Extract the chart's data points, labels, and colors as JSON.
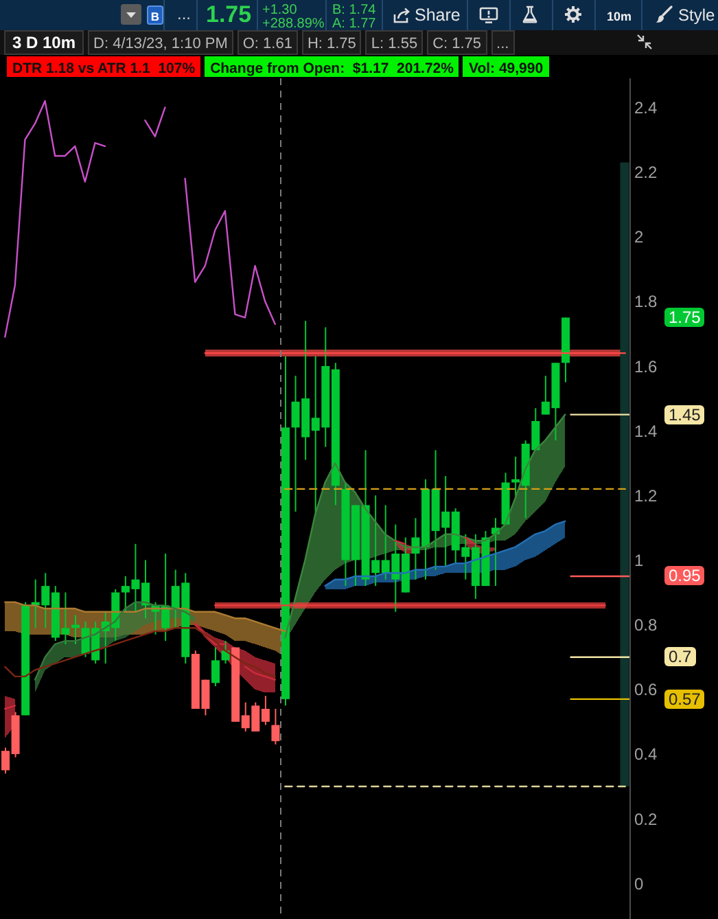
{
  "chart_data": {
    "type": "candlestick",
    "title": "3 D 10m",
    "annotations": [
      "B",
      "...",
      "1.75",
      "+1.30",
      "+288.89%",
      "B: 1.74",
      "A: 1.77",
      "Share",
      "10m",
      "Style",
      "D: 4/13/23, 1:10 PM",
      "O: 1.61",
      "H: 1.75",
      "L: 1.55",
      "C: 1.75",
      "...",
      "DTR 1.18 vs ATR 1.1  107%",
      "Change from Open:  $1.17  201.72%",
      "Vol: 49,990"
    ],
    "categories": [
      null,
      null,
      null,
      null,
      null,
      null,
      null,
      null,
      null,
      null,
      null,
      null,
      null,
      null,
      null,
      null,
      null,
      null,
      null,
      null,
      null,
      null,
      null,
      null,
      null,
      null,
      null,
      null,
      null,
      null,
      null,
      null,
      null,
      null,
      null,
      null,
      null,
      null,
      null,
      null,
      null,
      null,
      null,
      null,
      null,
      null,
      null,
      null,
      null,
      null,
      null,
      null,
      null,
      null,
      null,
      null,
      null,
      null,
      null,
      null,
      null,
      null,
      null
    ],
    "ohlc": [
      [
        0.41,
        0.42,
        0.34,
        0.35
      ],
      [
        0.52,
        0.53,
        0.39,
        0.4
      ],
      [
        0.52,
        0.87,
        0.52,
        0.86
      ],
      [
        0.86,
        0.94,
        0.79,
        0.87
      ],
      [
        0.86,
        0.96,
        0.79,
        0.92
      ],
      [
        0.76,
        0.92,
        0.75,
        0.9
      ],
      [
        0.77,
        0.9,
        0.74,
        0.79
      ],
      [
        0.79,
        0.83,
        0.74,
        0.8
      ],
      [
        0.71,
        0.81,
        0.7,
        0.79
      ],
      [
        0.69,
        0.81,
        0.68,
        0.79
      ],
      [
        0.78,
        0.84,
        0.68,
        0.81
      ],
      [
        0.79,
        0.91,
        0.75,
        0.9
      ],
      [
        0.9,
        0.95,
        0.84,
        0.92
      ],
      [
        0.91,
        1.05,
        0.84,
        0.94
      ],
      [
        0.86,
        1,
        0.82,
        0.93
      ],
      [
        0.84,
        0.87,
        0.77,
        0.86
      ],
      [
        0.79,
        1.02,
        0.75,
        0.86
      ],
      [
        0.85,
        0.97,
        0.79,
        0.92
      ],
      [
        0.7,
        0.96,
        0.68,
        0.93
      ],
      [
        0.71,
        0.72,
        0.54,
        0.54
      ],
      [
        0.63,
        0.63,
        0.52,
        0.54
      ],
      [
        0.62,
        0.73,
        0.61,
        0.69
      ],
      [
        0.69,
        0.75,
        0.68,
        0.72
      ],
      [
        0.73,
        0.73,
        0.5,
        0.5
      ],
      [
        0.52,
        0.56,
        0.47,
        0.48
      ],
      [
        0.55,
        0.56,
        0.47,
        0.47
      ],
      [
        0.54,
        0.58,
        0.49,
        0.5
      ],
      [
        0.49,
        0.54,
        0.43,
        0.44
      ],
      [
        0.57,
        1.63,
        0.55,
        1.41
      ],
      [
        1.41,
        1.57,
        1.15,
        1.49
      ],
      [
        1.38,
        1.74,
        1.31,
        1.5
      ],
      [
        1.4,
        1.63,
        1.14,
        1.44
      ],
      [
        1.41,
        1.72,
        1.35,
        1.6
      ],
      [
        1.23,
        1.61,
        1.17,
        1.59
      ],
      [
        1,
        1.24,
        0.92,
        1.22
      ],
      [
        1,
        1.17,
        0.92,
        1.17
      ],
      [
        0.94,
        1.34,
        0.92,
        1.17
      ],
      [
        0.96,
        1.2,
        0.92,
        1
      ],
      [
        0.96,
        1.17,
        0.94,
        1
      ],
      [
        0.94,
        1.11,
        0.84,
        1.02
      ],
      [
        0.9,
        1.07,
        0.9,
        1.02
      ],
      [
        1.02,
        1.13,
        0.94,
        1.07
      ],
      [
        1.04,
        1.25,
        0.94,
        1.22
      ],
      [
        1.09,
        1.34,
        0.97,
        1.22
      ],
      [
        1.1,
        1.26,
        0.98,
        1.15
      ],
      [
        1.03,
        1.16,
        0.99,
        1.15
      ],
      [
        1.01,
        1.08,
        0.94,
        1.04
      ],
      [
        0.92,
        1.08,
        0.88,
        1.04
      ],
      [
        0.92,
        1.09,
        0.92,
        1.07
      ],
      [
        1.08,
        1.13,
        0.92,
        1.1
      ],
      [
        1.11,
        1.27,
        1.11,
        1.24
      ],
      [
        1.24,
        1.32,
        1.19,
        1.25
      ],
      [
        1.23,
        1.37,
        1.13,
        1.36
      ],
      [
        1.34,
        1.47,
        1.34,
        1.43
      ],
      [
        1.45,
        1.57,
        1.45,
        1.49
      ],
      [
        1.47,
        1.61,
        1.37,
        1.61
      ],
      [
        1.61,
        1.75,
        1.55,
        1.75
      ],
      null,
      null,
      null,
      null,
      null,
      null
    ],
    "colors": [
      "#ff5f5f",
      "#ff5f5f",
      "#00c832",
      "#00c832",
      "#00c832",
      "#00c832",
      "#00c832",
      "#00c832",
      "#00c832",
      "#00c832",
      "#00c832",
      "#00c832",
      "#00c832",
      "#00c832",
      "#00c832",
      "#00c832",
      "#00c832",
      "#00c832",
      "#00c832",
      "#ff5f5f",
      "#ff5f5f",
      "#00c832",
      "#00c832",
      "#ff5f5f",
      "#ff5f5f",
      "#ff5f5f",
      "#ff5f5f",
      "#ff5f5f",
      "#00c832",
      "#00c832",
      "#00c832",
      "#00c832",
      "#00c832",
      "#00c832",
      "#00c832",
      "#00c832",
      "#00c832",
      "#00c832",
      "#00c832",
      "#00c832",
      "#00c832",
      "#00c832",
      "#00c832",
      "#00c832",
      "#00c832",
      "#00c832",
      "#00c832",
      "#00c832",
      "#00c832",
      "#00c832",
      "#00c832",
      "#00c832",
      "#00c832",
      "#00c832",
      "#00c832",
      "#00c832",
      "#00c832",
      null,
      null,
      null,
      null,
      null,
      null
    ],
    "value_labels": [
      null,
      null,
      null,
      null,
      null,
      null,
      null,
      null,
      null,
      null,
      null,
      null,
      null,
      null,
      null,
      null,
      null,
      null,
      null,
      null,
      null,
      null,
      null,
      null,
      null,
      null,
      null,
      null,
      null,
      null,
      null,
      null,
      null,
      null,
      null,
      null,
      null,
      null,
      null,
      null,
      null,
      null,
      null,
      null,
      null,
      null,
      null,
      null,
      null,
      null,
      null,
      null,
      null,
      null,
      null,
      null,
      "1.75",
      null,
      null,
      null,
      null,
      null,
      null
    ],
    "series": [
      {
        "type": "line",
        "color": "#c850c8",
        "values": [
          1.69,
          1.85,
          2.3,
          2.35,
          2.42,
          2.25,
          2.25,
          2.28,
          2.17,
          2.29,
          2.28,
          null,
          null,
          null,
          2.36,
          2.31,
          2.4,
          null,
          2.18,
          1.86,
          1.91,
          2.02,
          2.08,
          1.76,
          1.75,
          1.91,
          1.8,
          1.73,
          null,
          null,
          null,
          null,
          null,
          null,
          null,
          null,
          null,
          null,
          null,
          null,
          null,
          null,
          null,
          null,
          null,
          null,
          null,
          null,
          null,
          null,
          null,
          null,
          null,
          null,
          null,
          null,
          null,
          null,
          null,
          null,
          null,
          null,
          null
        ]
      },
      {
        "type": "line",
        "color": "#ad7c30",
        "values": [
          0.87,
          0.87,
          0.86,
          0.86,
          0.85,
          0.85,
          0.85,
          0.85,
          0.84,
          0.84,
          0.84,
          0.84,
          0.84,
          0.84,
          0.85,
          0.85,
          0.85,
          0.85,
          0.85,
          0.84,
          0.84,
          0.84,
          0.83,
          0.82,
          0.82,
          0.81,
          0.8,
          0.79,
          0.78,
          null,
          null,
          null,
          null,
          null,
          null,
          null,
          null,
          null,
          null,
          null,
          null,
          null,
          null,
          null,
          null,
          null,
          null,
          null,
          null,
          null,
          null,
          null,
          null,
          null,
          null,
          null,
          null,
          null,
          null,
          null,
          null,
          null,
          null
        ],
        "lower": [
          0.78,
          0.78,
          0.77,
          0.77,
          0.77,
          0.77,
          0.77,
          0.76,
          0.76,
          0.76,
          0.76,
          0.76,
          0.77,
          0.77,
          0.77,
          0.78,
          0.78,
          0.79,
          0.8,
          0.8,
          0.79,
          0.78,
          0.77,
          0.75,
          0.75,
          0.74,
          0.73,
          0.72,
          0.7,
          null,
          null,
          null,
          null,
          null,
          null,
          null,
          null,
          null,
          null,
          null,
          null,
          null,
          null,
          null,
          null,
          null,
          null,
          null,
          null,
          null,
          null,
          null,
          null,
          null,
          null,
          null,
          null,
          null,
          null,
          null,
          null,
          null,
          null
        ],
        "upper": [
          0.87,
          0.87,
          0.86,
          0.86,
          0.85,
          0.85,
          0.85,
          0.85,
          0.84,
          0.84,
          0.84,
          0.84,
          0.84,
          0.84,
          0.85,
          0.85,
          0.85,
          0.85,
          0.85,
          0.84,
          0.84,
          0.84,
          0.83,
          0.82,
          0.82,
          0.81,
          0.8,
          0.79,
          0.78,
          null,
          null,
          null,
          null,
          null,
          null,
          null,
          null,
          null,
          null,
          null,
          null,
          null,
          null,
          null,
          null,
          null,
          null,
          null,
          null,
          null,
          null,
          null,
          null,
          null,
          null,
          null,
          null,
          null,
          null,
          null,
          null,
          null,
          null
        ]
      },
      {
        "type": "line",
        "color": "#36773b",
        "values": [
          null,
          null,
          null,
          0.63,
          0.7,
          0.74,
          0.75,
          0.75,
          0.76,
          0.77,
          0.79,
          0.81,
          0.85,
          0.87,
          0.87,
          0.86,
          0.86,
          0.85,
          0.84,
          0.82,
          null,
          null,
          null,
          null,
          null,
          null,
          null,
          null,
          null,
          null,
          null,
          null,
          null,
          null,
          null,
          null,
          null,
          null,
          null,
          null,
          null,
          null,
          null,
          null,
          null,
          null,
          null,
          null,
          null,
          null,
          null,
          null,
          null,
          null,
          null,
          null,
          null,
          null,
          null,
          null,
          null,
          null,
          null
        ],
        "lower": [
          null,
          null,
          null,
          0.59,
          0.66,
          0.68,
          0.7,
          0.7,
          0.71,
          0.72,
          0.73,
          0.75,
          0.76,
          0.78,
          0.8,
          0.81,
          0.82,
          0.82,
          0.82,
          0.81,
          null,
          null,
          null,
          null,
          null,
          null,
          null,
          null,
          null,
          null,
          null,
          null,
          null,
          null,
          null,
          null,
          null,
          null,
          null,
          null,
          null,
          null,
          null,
          null,
          null,
          null,
          null,
          null,
          null,
          null,
          null,
          null,
          null,
          null,
          null,
          null,
          null,
          null,
          null,
          null,
          null,
          null,
          null
        ],
        "upper": [
          null,
          null,
          null,
          0.63,
          0.7,
          0.74,
          0.75,
          0.75,
          0.76,
          0.77,
          0.79,
          0.81,
          0.85,
          0.87,
          0.87,
          0.86,
          0.86,
          0.85,
          0.84,
          0.82,
          null,
          null,
          null,
          null,
          null,
          null,
          null,
          null,
          null,
          null,
          null,
          null,
          null,
          null,
          null,
          null,
          null,
          null,
          null,
          null,
          null,
          null,
          null,
          null,
          null,
          null,
          null,
          null,
          null,
          null,
          null,
          null,
          null,
          null,
          null,
          null,
          null,
          null,
          null,
          null,
          null,
          null,
          null
        ]
      },
      {
        "type": "line",
        "color": "#cc2c3c",
        "values": [
          0.54,
          0.55,
          null,
          null,
          null,
          null,
          null,
          null,
          null,
          null,
          null,
          null,
          null,
          null,
          null,
          null,
          null,
          null,
          null,
          0.8,
          0.77,
          0.74,
          0.74,
          null,
          0.67,
          0.65,
          0.64,
          0.63,
          null,
          null,
          null,
          null,
          null,
          null,
          null,
          null,
          null,
          null,
          null,
          null,
          null,
          null,
          null,
          null,
          null,
          null,
          null,
          null,
          null,
          null,
          null,
          null,
          null,
          null,
          null,
          null,
          null,
          null,
          null,
          null,
          null,
          null,
          null
        ],
        "lower": [
          0.45,
          0.49,
          null,
          null,
          null,
          null,
          null,
          null,
          null,
          null,
          null,
          null,
          null,
          null,
          null,
          null,
          null,
          null,
          null,
          0.8,
          0.76,
          0.73,
          0.7,
          0.66,
          0.63,
          0.6,
          0.59,
          0.59,
          null,
          null,
          null,
          null,
          null,
          null,
          null,
          null,
          null,
          null,
          null,
          null,
          null,
          null,
          null,
          null,
          null,
          null,
          null,
          null,
          null,
          null,
          null,
          null,
          null,
          null,
          null,
          null,
          null,
          null,
          null,
          null,
          null,
          null,
          null
        ],
        "upper": [
          0.58,
          0.57,
          null,
          null,
          null,
          null,
          null,
          null,
          null,
          null,
          null,
          null,
          null,
          null,
          null,
          null,
          null,
          null,
          null,
          0.81,
          0.78,
          0.76,
          0.75,
          0.73,
          0.72,
          0.7,
          0.69,
          0.68,
          null,
          null,
          null,
          null,
          null,
          null,
          null,
          null,
          null,
          null,
          null,
          null,
          null,
          null,
          null,
          null,
          null,
          null,
          null,
          null,
          null,
          null,
          null,
          null,
          null,
          null,
          null,
          null,
          null,
          null,
          null,
          null,
          null,
          null,
          null
        ]
      },
      {
        "type": "line",
        "color": "#7a2612",
        "values": [
          0.67,
          0.64,
          0.64,
          0.66,
          0.67,
          0.68,
          0.69,
          0.7,
          0.71,
          0.72,
          0.73,
          0.74,
          0.75,
          0.76,
          0.77,
          0.78,
          0.78,
          0.79,
          0.79,
          0.79,
          0.77,
          0.75,
          0.72,
          0.7,
          0.68,
          0.67,
          0.65,
          0.64,
          null,
          null,
          null,
          null,
          null,
          null,
          null,
          null,
          null,
          null,
          null,
          null,
          null,
          null,
          null,
          null,
          null,
          null,
          null,
          null,
          null,
          null,
          null,
          null,
          null,
          null,
          null,
          null,
          null,
          null,
          null,
          null,
          null,
          null,
          null
        ]
      },
      {
        "type": "line",
        "color": "#3b863d",
        "values": [
          null,
          null,
          null,
          null,
          null,
          null,
          null,
          null,
          null,
          null,
          null,
          null,
          null,
          null,
          null,
          null,
          null,
          null,
          null,
          null,
          null,
          null,
          null,
          null,
          null,
          null,
          null,
          null,
          0.76,
          0.88,
          1,
          1.14,
          1.24,
          1.3,
          1.24,
          1.21,
          1.16,
          1.12,
          1.08,
          1.06,
          1.04,
          1.04,
          1.04,
          1.06,
          1.08,
          1.08,
          1.07,
          1.06,
          1.06,
          1.08,
          1.11,
          1.19,
          1.28,
          1.34,
          1.37,
          1.41,
          1.45,
          null,
          null,
          null,
          null,
          null,
          null
        ],
        "lower": [
          null,
          null,
          null,
          null,
          null,
          null,
          null,
          null,
          null,
          null,
          null,
          null,
          null,
          null,
          null,
          null,
          null,
          null,
          null,
          null,
          null,
          null,
          null,
          null,
          null,
          null,
          null,
          null,
          0.75,
          0.8,
          0.85,
          0.9,
          0.94,
          0.97,
          0.99,
          1,
          1,
          1.01,
          1.02,
          1.03,
          1.03,
          1.03,
          1.03,
          1.04,
          1.04,
          1.05,
          1.05,
          1.05,
          1.05,
          1.06,
          1.06,
          1.08,
          1.12,
          1.15,
          1.18,
          1.24,
          1.29,
          null,
          null,
          null,
          null,
          null,
          null
        ],
        "upper": [
          null,
          null,
          null,
          null,
          null,
          null,
          null,
          null,
          null,
          null,
          null,
          null,
          null,
          null,
          null,
          null,
          null,
          null,
          null,
          null,
          null,
          null,
          null,
          null,
          null,
          null,
          null,
          null,
          0.76,
          0.88,
          1,
          1.14,
          1.24,
          1.3,
          1.24,
          1.21,
          1.16,
          1.12,
          1.08,
          1.06,
          1.04,
          1.04,
          1.04,
          1.06,
          1.08,
          1.08,
          1.07,
          1.06,
          1.06,
          1.08,
          1.11,
          1.19,
          1.28,
          1.34,
          1.37,
          1.41,
          1.45,
          null,
          null,
          null,
          null,
          null,
          null
        ]
      },
      {
        "type": "line",
        "color": "#2371b7",
        "values": [
          null,
          null,
          null,
          null,
          null,
          null,
          null,
          null,
          null,
          null,
          null,
          null,
          null,
          null,
          null,
          null,
          null,
          null,
          null,
          null,
          null,
          null,
          null,
          null,
          null,
          null,
          null,
          null,
          null,
          null,
          null,
          null,
          0.92,
          0.94,
          0.94,
          0.95,
          0.95,
          0.95,
          0.96,
          0.96,
          0.96,
          0.97,
          0.97,
          0.98,
          0.98,
          0.99,
          0.99,
          1,
          1.01,
          1.02,
          1.03,
          1.04,
          1.06,
          1.08,
          1.09,
          1.11,
          1.12,
          null,
          null,
          null,
          null,
          null,
          null
        ],
        "lower": [
          null,
          null,
          null,
          null,
          null,
          null,
          null,
          null,
          null,
          null,
          null,
          null,
          null,
          null,
          null,
          null,
          null,
          null,
          null,
          null,
          null,
          null,
          null,
          null,
          null,
          null,
          null,
          null,
          null,
          null,
          null,
          null,
          0.91,
          0.91,
          0.91,
          0.92,
          0.92,
          0.93,
          0.93,
          0.93,
          0.94,
          0.94,
          0.95,
          0.95,
          0.96,
          0.96,
          0.96,
          0.96,
          0.96,
          0.97,
          0.97,
          0.98,
          1,
          1.01,
          1.03,
          1.05,
          1.07,
          null,
          null,
          null,
          null,
          null,
          null
        ],
        "upper": [
          null,
          null,
          null,
          null,
          null,
          null,
          null,
          null,
          null,
          null,
          null,
          null,
          null,
          null,
          null,
          null,
          null,
          null,
          null,
          null,
          null,
          null,
          null,
          null,
          null,
          null,
          null,
          null,
          null,
          null,
          null,
          null,
          0.92,
          0.94,
          0.94,
          0.95,
          0.95,
          0.95,
          0.96,
          0.96,
          0.96,
          0.97,
          0.97,
          0.98,
          0.98,
          0.99,
          0.99,
          1,
          1.01,
          1.02,
          1.03,
          1.04,
          1.06,
          1.08,
          1.09,
          1.11,
          1.12,
          null,
          null,
          null,
          null,
          null,
          null
        ]
      },
      {
        "type": "line",
        "color": "#cc2c3c",
        "values": [
          null,
          null,
          null,
          null,
          null,
          null,
          null,
          null,
          null,
          null,
          null,
          null,
          null,
          null,
          null,
          null,
          null,
          null,
          null,
          null,
          null,
          null,
          null,
          null,
          null,
          null,
          null,
          null,
          null,
          null,
          null,
          null,
          null,
          null,
          null,
          null,
          null,
          null,
          null,
          1.06,
          1.05,
          null,
          null,
          null,
          null,
          null,
          1.07,
          1.05,
          null,
          null,
          null,
          null,
          null,
          null,
          null,
          null,
          null,
          null,
          null,
          null,
          null,
          null,
          null
        ],
        "lower": [
          null,
          null,
          null,
          null,
          null,
          null,
          null,
          null,
          null,
          null,
          null,
          null,
          null,
          null,
          null,
          null,
          null,
          null,
          null,
          null,
          null,
          null,
          null,
          null,
          null,
          null,
          null,
          null,
          null,
          null,
          null,
          null,
          null,
          null,
          null,
          null,
          null,
          null,
          null,
          1.05,
          1.02,
          1.02,
          null,
          null,
          null,
          null,
          1.05,
          1.02,
          1.02,
          1.03,
          null,
          null,
          null,
          null,
          null,
          null,
          null,
          null,
          null,
          null,
          null,
          null,
          null
        ],
        "upper": [
          null,
          null,
          null,
          null,
          null,
          null,
          null,
          null,
          null,
          null,
          null,
          null,
          null,
          null,
          null,
          null,
          null,
          null,
          null,
          null,
          null,
          null,
          null,
          null,
          null,
          null,
          null,
          null,
          null,
          null,
          null,
          null,
          null,
          null,
          null,
          null,
          null,
          null,
          null,
          1.06,
          1.05,
          1.04,
          null,
          null,
          null,
          null,
          1.07,
          1.05,
          1.04,
          1.04,
          null,
          null,
          null,
          null,
          null,
          null,
          null,
          null,
          null,
          null,
          null,
          null,
          null
        ]
      },
      {
        "type": "line",
        "color": "#ff4a4a",
        "values": [
          null,
          null,
          null,
          null,
          null,
          null,
          null,
          null,
          null,
          null,
          null,
          null,
          null,
          null,
          null,
          null,
          null,
          null,
          null,
          null,
          1.64,
          1.64,
          1.64,
          1.64,
          1.64,
          1.64,
          1.64,
          1.64,
          1.64,
          1.64,
          1.64,
          1.64,
          1.64,
          1.64,
          1.64,
          1.64,
          1.64,
          1.64,
          1.64,
          1.64,
          1.64,
          1.64,
          1.64,
          1.64,
          1.64,
          1.64,
          1.64,
          1.64,
          1.64,
          1.64,
          1.64,
          1.64,
          1.64,
          1.64,
          1.64,
          1.64,
          1.64,
          1.64,
          1.64,
          1.64,
          1.64,
          1.64,
          1.64
        ],
        "lower": [
          null,
          null,
          null,
          null,
          null,
          null,
          null,
          null,
          null,
          null,
          null,
          null,
          null,
          null,
          null,
          null,
          null,
          null,
          null,
          null,
          1.63,
          1.63,
          1.63,
          1.63,
          1.63,
          1.63,
          1.63,
          1.63,
          1.63,
          1.63,
          1.63,
          1.63,
          1.63,
          1.63,
          1.63,
          1.63,
          1.63,
          1.63,
          1.63,
          1.63,
          1.63,
          1.63,
          1.63,
          1.63,
          1.63,
          1.63,
          1.63,
          1.63,
          1.63,
          1.63,
          1.63,
          1.63,
          1.63,
          1.63,
          1.63,
          1.63,
          1.63,
          1.63,
          1.63,
          1.63,
          1.63,
          1.63,
          1.63
        ],
        "upper": [
          null,
          null,
          null,
          null,
          null,
          null,
          null,
          null,
          null,
          null,
          null,
          null,
          null,
          null,
          null,
          null,
          null,
          null,
          null,
          null,
          1.65,
          1.65,
          1.65,
          1.65,
          1.65,
          1.65,
          1.65,
          1.65,
          1.65,
          1.65,
          1.65,
          1.65,
          1.65,
          1.65,
          1.65,
          1.65,
          1.65,
          1.65,
          1.65,
          1.65,
          1.65,
          1.65,
          1.65,
          1.65,
          1.65,
          1.65,
          1.65,
          1.65,
          1.65,
          1.65,
          1.65,
          1.65,
          1.65,
          1.65,
          1.65,
          1.65,
          1.65,
          1.65,
          1.65,
          1.65,
          1.65,
          1.65,
          1.65
        ]
      },
      {
        "type": "line",
        "color": "#ee3f3f",
        "values": [
          null,
          null,
          null,
          null,
          null,
          null,
          null,
          null,
          null,
          null,
          null,
          null,
          null,
          null,
          null,
          null,
          null,
          null,
          null,
          null,
          null,
          0.86,
          0.86,
          0.86,
          0.86,
          0.86,
          0.86,
          0.86,
          0.86,
          0.86,
          0.86,
          0.86,
          0.86,
          0.86,
          0.86,
          0.86,
          0.86,
          0.86,
          0.86,
          0.86,
          0.86,
          0.86,
          0.86,
          0.86,
          0.86,
          0.86,
          0.86,
          0.86,
          0.86,
          0.86,
          0.86,
          0.86,
          0.86,
          0.86,
          0.86,
          0.86,
          0.86,
          0.86,
          0.86,
          0.86,
          0.86,
          null,
          null
        ],
        "lower": [
          null,
          null,
          null,
          null,
          null,
          null,
          null,
          null,
          null,
          null,
          null,
          null,
          null,
          null,
          null,
          null,
          null,
          null,
          null,
          null,
          null,
          0.85,
          0.85,
          0.85,
          0.85,
          0.85,
          0.85,
          0.85,
          0.85,
          0.85,
          0.85,
          0.85,
          0.85,
          0.85,
          0.85,
          0.85,
          0.85,
          0.85,
          0.85,
          0.85,
          0.85,
          0.85,
          0.85,
          0.85,
          0.85,
          0.85,
          0.85,
          0.85,
          0.85,
          0.85,
          0.85,
          0.85,
          0.85,
          0.85,
          0.85,
          0.85,
          0.85,
          0.85,
          0.85,
          0.85,
          0.85,
          null,
          null
        ],
        "upper": [
          null,
          null,
          null,
          null,
          null,
          null,
          null,
          null,
          null,
          null,
          null,
          null,
          null,
          null,
          null,
          null,
          null,
          null,
          null,
          null,
          null,
          0.87,
          0.87,
          0.87,
          0.87,
          0.87,
          0.87,
          0.87,
          0.87,
          0.87,
          0.87,
          0.87,
          0.87,
          0.87,
          0.87,
          0.87,
          0.87,
          0.87,
          0.87,
          0.87,
          0.87,
          0.87,
          0.87,
          0.87,
          0.87,
          0.87,
          0.87,
          0.87,
          0.87,
          0.87,
          0.87,
          0.87,
          0.87,
          0.87,
          0.87,
          0.87,
          0.87,
          0.87,
          0.87,
          0.87,
          0.87,
          null,
          null
        ]
      },
      {
        "type": "line",
        "color": "#d4a017",
        "line_style": "dashed",
        "values": [
          null,
          null,
          null,
          null,
          null,
          null,
          null,
          null,
          null,
          null,
          null,
          null,
          null,
          null,
          null,
          null,
          null,
          null,
          null,
          null,
          null,
          null,
          null,
          null,
          null,
          null,
          null,
          null,
          1.22,
          1.22,
          1.22,
          1.22,
          1.22,
          1.22,
          1.22,
          1.22,
          1.22,
          1.22,
          1.22,
          1.22,
          1.22,
          1.22,
          1.22,
          1.22,
          1.22,
          1.22,
          1.22,
          1.22,
          1.22,
          1.22,
          1.22,
          1.22,
          1.22,
          1.22,
          1.22,
          1.22,
          1.22,
          1.22,
          1.22,
          1.22,
          1.22,
          1.22,
          1.22
        ]
      },
      {
        "type": "line",
        "color": "#ddd49a",
        "line_style": "dashed",
        "values": [
          null,
          null,
          null,
          null,
          null,
          null,
          null,
          null,
          null,
          null,
          null,
          null,
          null,
          null,
          null,
          null,
          null,
          null,
          null,
          null,
          null,
          null,
          null,
          null,
          null,
          null,
          null,
          null,
          0.3,
          0.3,
          0.3,
          0.3,
          0.3,
          0.3,
          0.3,
          0.3,
          0.3,
          0.3,
          0.3,
          0.3,
          0.3,
          0.3,
          0.3,
          0.3,
          0.3,
          0.3,
          0.3,
          0.3,
          0.3,
          0.3,
          0.3,
          0.3,
          0.3,
          0.3,
          0.3,
          0.3,
          0.3,
          0.3,
          0.3,
          0.3,
          0.3,
          0.3,
          0.3
        ]
      },
      {
        "type": "bar",
        "color": "#0f332d",
        "values": [
          null,
          null,
          null,
          null,
          null,
          null,
          null,
          null,
          null,
          null,
          null,
          null,
          null,
          null,
          null,
          null,
          null,
          null,
          null,
          null,
          null,
          null,
          null,
          null,
          null,
          null,
          null,
          null,
          null,
          null,
          null,
          null,
          null,
          null,
          null,
          null,
          null,
          null,
          null,
          null,
          null,
          null,
          null,
          null,
          null,
          null,
          null,
          null,
          null,
          null,
          null,
          null,
          null,
          null,
          null,
          null,
          null,
          null,
          null,
          null,
          null,
          null,
          1.93
        ],
        "base": [
          null,
          null,
          null,
          null,
          null,
          null,
          null,
          null,
          null,
          null,
          null,
          null,
          null,
          null,
          null,
          null,
          null,
          null,
          null,
          null,
          null,
          null,
          null,
          null,
          null,
          null,
          null,
          null,
          null,
          null,
          null,
          null,
          null,
          null,
          null,
          null,
          null,
          null,
          null,
          null,
          null,
          null,
          null,
          null,
          null,
          null,
          null,
          null,
          null,
          null,
          null,
          null,
          null,
          null,
          null,
          null,
          null,
          null,
          null,
          null,
          null,
          null,
          0.3
        ]
      }
    ],
    "ylim": [
      -0.11,
      2.49
    ],
    "yticks": [
      0,
      0.2,
      0.4,
      0.6,
      0.8,
      1,
      1.2,
      1.4,
      1.6,
      1.8,
      2,
      2.2,
      2.4
    ],
    "tick_labels": "y",
    "ref_lines": [
      {
        "axis": "y",
        "value": 1.45,
        "label": "1.45",
        "color": "#f5e6a6"
      },
      {
        "axis": "y",
        "value": 0.95,
        "label": "0.95",
        "color": "#ff5a5a"
      },
      {
        "axis": "y",
        "value": 0.7,
        "label": "0.7",
        "color": "#f5e6a6"
      },
      {
        "axis": "y",
        "value": 0.57,
        "label": "0.57",
        "color": "#e6bf00"
      }
    ]
  }
}
